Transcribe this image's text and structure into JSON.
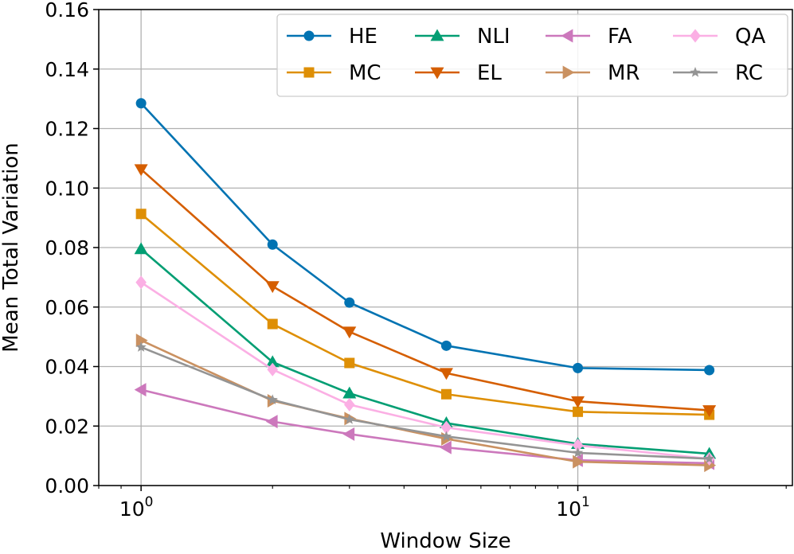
{
  "chart_data": {
    "type": "line",
    "xlabel": "Window Size",
    "ylabel": "Mean Total Variation",
    "xscale": "log",
    "xlim": [
      0.8,
      31
    ],
    "ylim": [
      0.0,
      0.16
    ],
    "grid": true,
    "legend_position": "top-right",
    "legend_columns": 4,
    "xticks": [
      {
        "value": 1,
        "base": "10",
        "exp": "0"
      },
      {
        "value": 10,
        "base": "10",
        "exp": "1"
      }
    ],
    "yticks": [
      {
        "value": 0.0,
        "label": "0.00"
      },
      {
        "value": 0.02,
        "label": "0.02"
      },
      {
        "value": 0.04,
        "label": "0.04"
      },
      {
        "value": 0.06,
        "label": "0.06"
      },
      {
        "value": 0.08,
        "label": "0.08"
      },
      {
        "value": 0.1,
        "label": "0.10"
      },
      {
        "value": 0.12,
        "label": "0.12"
      },
      {
        "value": 0.14,
        "label": "0.14"
      },
      {
        "value": 0.16,
        "label": "0.16"
      }
    ],
    "x": [
      1,
      2,
      3,
      5,
      10,
      20
    ],
    "series": [
      {
        "name": "HE",
        "color": "#0173b2",
        "marker": "circle",
        "values": [
          0.1285,
          0.081,
          0.0615,
          0.047,
          0.0395,
          0.0388
        ]
      },
      {
        "name": "MC",
        "color": "#de8f05",
        "marker": "square",
        "values": [
          0.0913,
          0.0543,
          0.0412,
          0.0307,
          0.0248,
          0.0238
        ]
      },
      {
        "name": "NLI",
        "color": "#029e73",
        "marker": "triangle-up",
        "values": [
          0.0795,
          0.0415,
          0.031,
          0.021,
          0.014,
          0.0107
        ]
      },
      {
        "name": "EL",
        "color": "#d55e00",
        "marker": "triangle-down",
        "values": [
          0.1063,
          0.067,
          0.0517,
          0.0378,
          0.0283,
          0.0253
        ]
      },
      {
        "name": "FA",
        "color": "#cc78bc",
        "marker": "triangle-left",
        "values": [
          0.0322,
          0.0215,
          0.0173,
          0.0128,
          0.0085,
          0.0075
        ]
      },
      {
        "name": "MR",
        "color": "#ca9161",
        "marker": "triangle-right",
        "values": [
          0.0488,
          0.0285,
          0.0225,
          0.0157,
          0.008,
          0.0068
        ]
      },
      {
        "name": "QA",
        "color": "#fbafe4",
        "marker": "diamond",
        "values": [
          0.0683,
          0.039,
          0.0272,
          0.0195,
          0.0135,
          0.009
        ]
      },
      {
        "name": "RC",
        "color": "#949494",
        "marker": "star",
        "values": [
          0.0465,
          0.0288,
          0.0222,
          0.0165,
          0.011,
          0.009
        ]
      }
    ]
  }
}
